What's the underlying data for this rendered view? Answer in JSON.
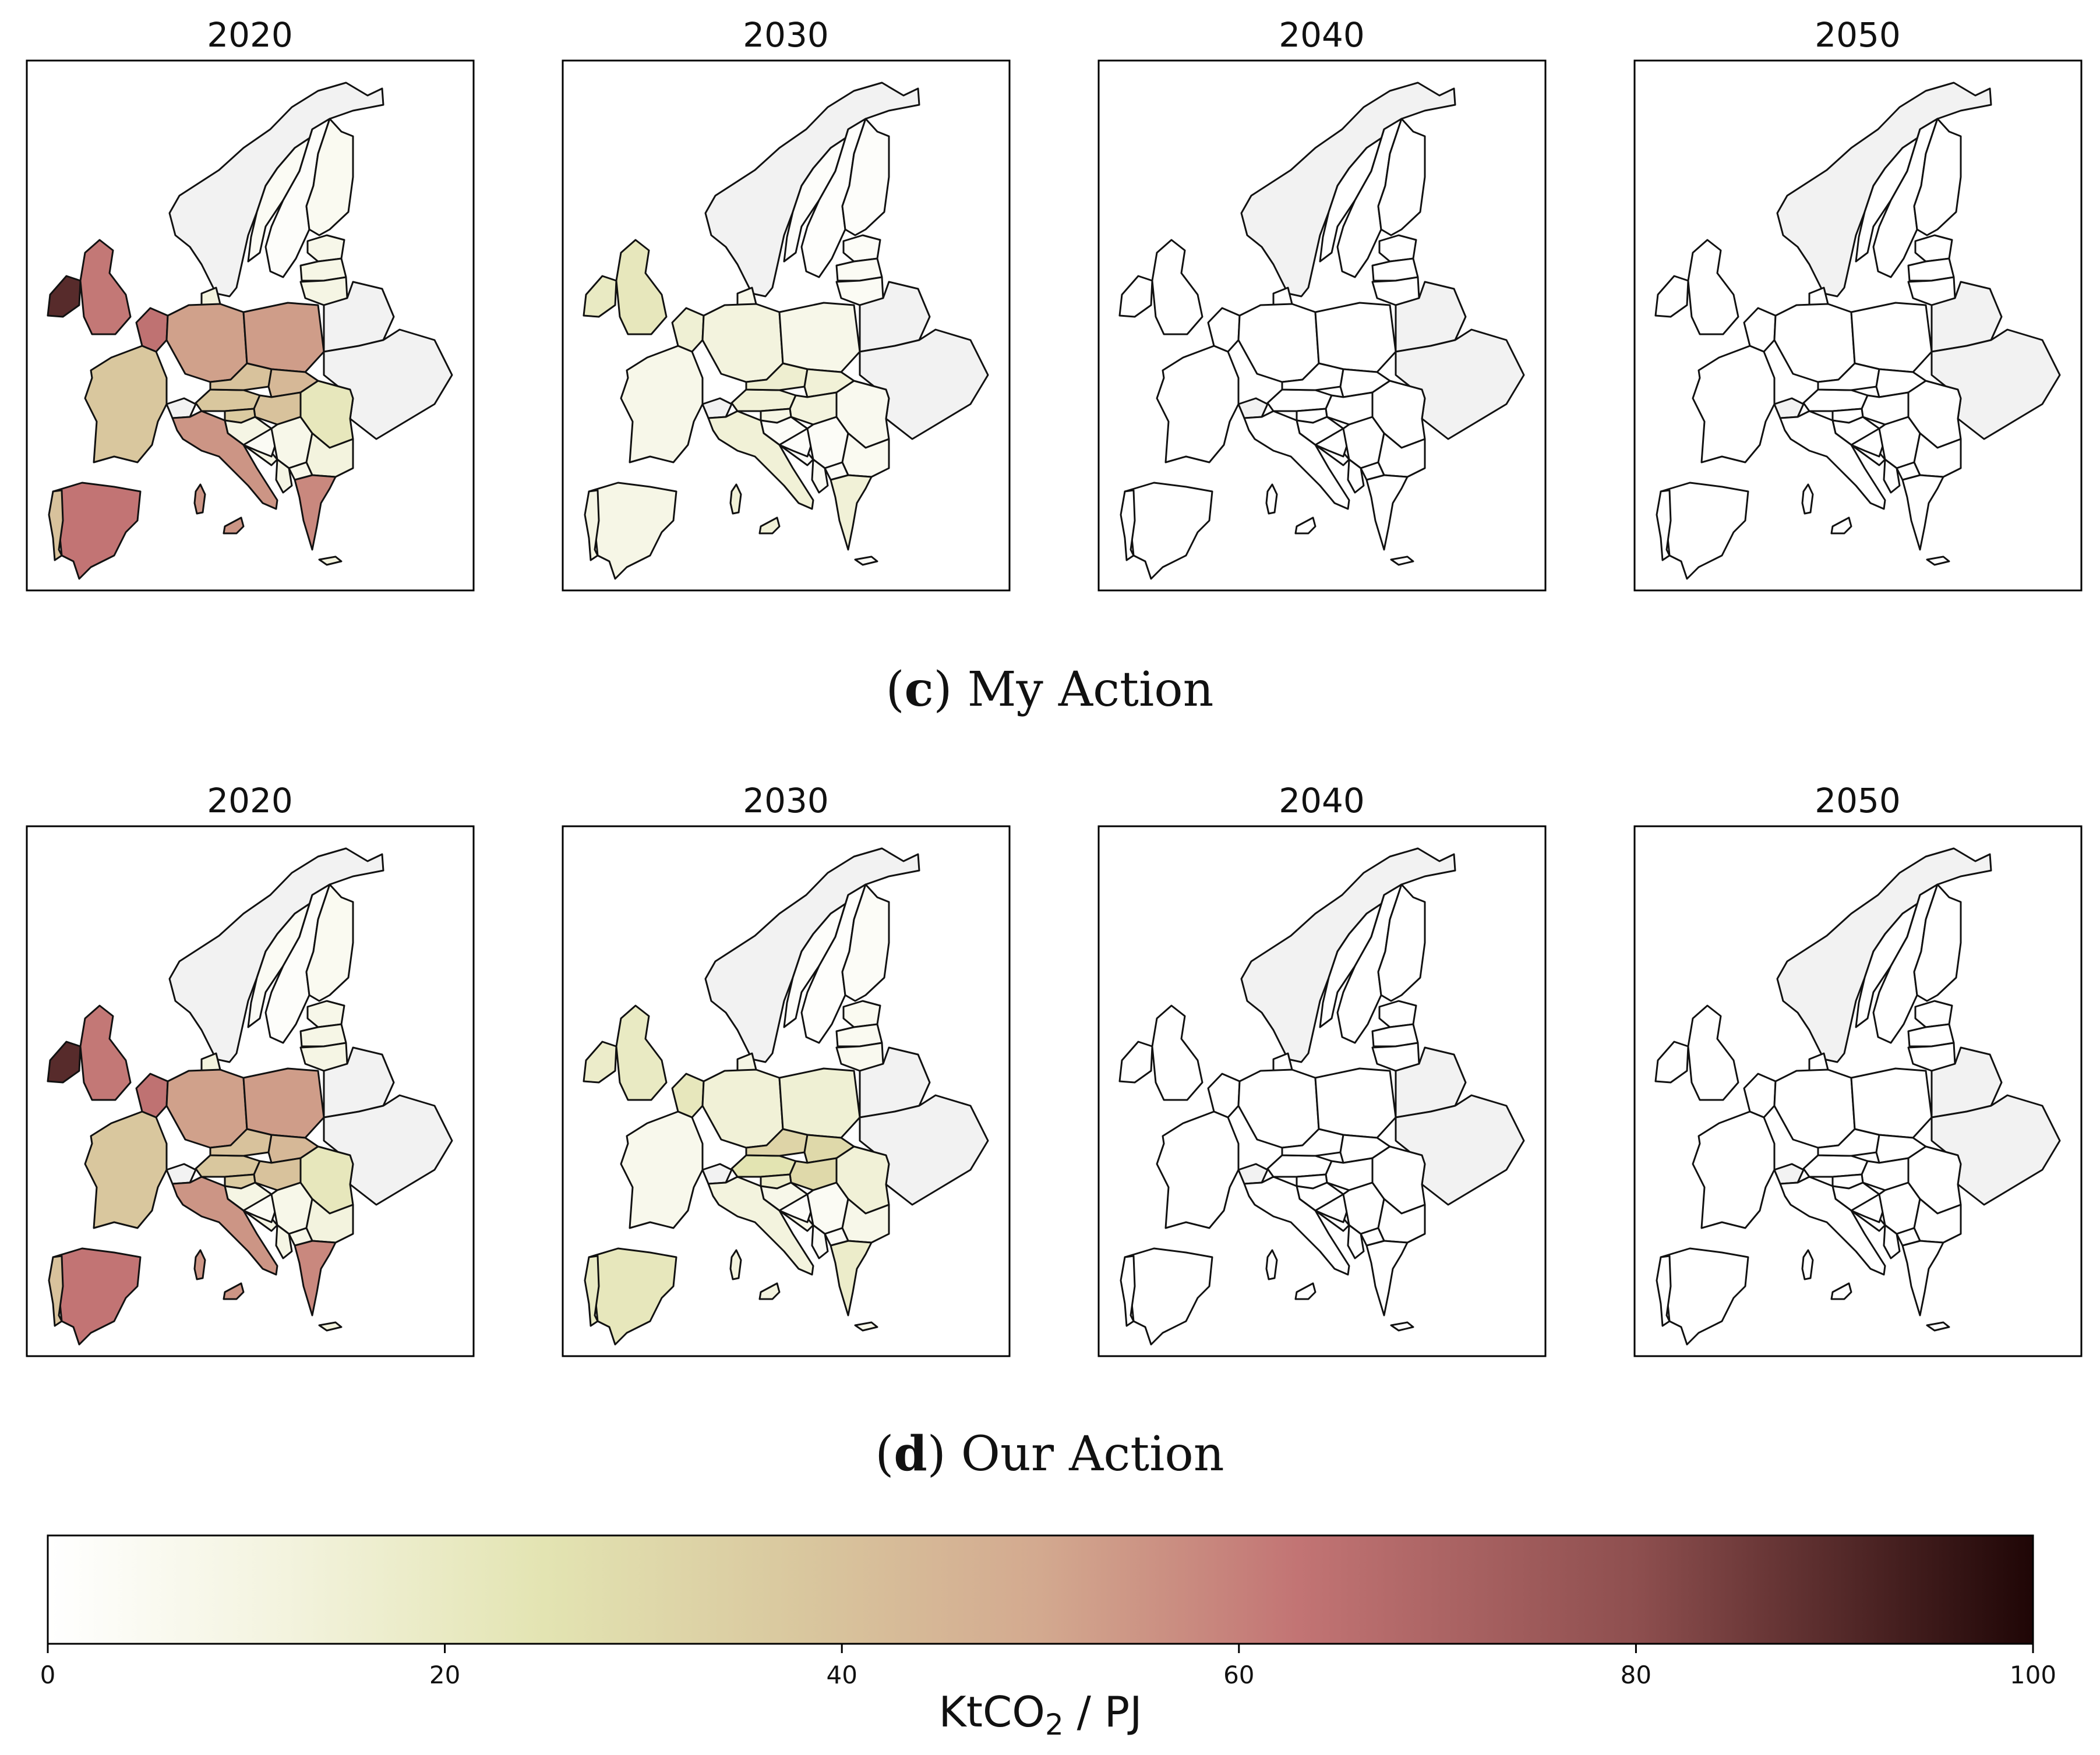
{
  "years": [
    "2020",
    "2030",
    "2040",
    "2050"
  ],
  "rows": [
    {
      "caption_letter": "c",
      "caption_text": "My Action",
      "maps": [
        {
          "year": "2020",
          "values": {
            "Iceland": 0,
            "Norway": 4,
            "Sweden": 2,
            "Finland": 5,
            "Estonia": 8,
            "Latvia": 9,
            "Lithuania": 10,
            "Denmark": 12,
            "Ireland": 90,
            "UK": 62,
            "Benelux": 64,
            "Germany": 52,
            "Poland": 53,
            "Belarus": 0,
            "Ukraine": 0,
            "France": 38,
            "Switzerland": 0,
            "Austria": 38,
            "Czechia": 40,
            "Slovakia": 44,
            "Hungary": 40,
            "Slovenia": 36,
            "Croatia": 10,
            "Bosnia": 4,
            "Serbia": 8,
            "Romania": 22,
            "Bulgaria": 12,
            "Italy": 55,
            "Greece": 58,
            "Albania": 10,
            "Macedonia": 8,
            "Spain": 63,
            "Portugal": 40,
            "Sardinia": 55,
            "Sicily": 55,
            "Crete": 12
          }
        },
        {
          "year": "2030",
          "values": {
            "Iceland": 0,
            "Norway": 2,
            "Sweden": 1,
            "Finland": 2,
            "Estonia": 3,
            "Latvia": 4,
            "Lithuania": 4,
            "Denmark": 8,
            "Ireland": 20,
            "UK": 22,
            "Benelux": 15,
            "Germany": 12,
            "Poland": 8,
            "Belarus": 0,
            "Ukraine": 0,
            "France": 8,
            "Switzerland": 0,
            "Austria": 14,
            "Czechia": 16,
            "Slovakia": 14,
            "Hungary": 12,
            "Slovenia": 10,
            "Croatia": 3,
            "Bosnia": 2,
            "Serbia": 3,
            "Romania": 6,
            "Bulgaria": 5,
            "Italy": 14,
            "Greece": 14,
            "Albania": 4,
            "Macedonia": 3,
            "Spain": 9,
            "Portugal": 10,
            "Sardinia": 14,
            "Sicily": 14,
            "Crete": 3
          }
        },
        {
          "year": "2040",
          "values": {
            "Iceland": 0,
            "Norway": 0,
            "Sweden": 0,
            "Finland": 0,
            "Estonia": 0,
            "Latvia": 0,
            "Lithuania": 0,
            "Denmark": 0,
            "Ireland": 0,
            "UK": 0,
            "Benelux": 0,
            "Germany": 0,
            "Poland": 0,
            "Belarus": 0,
            "Ukraine": 0,
            "France": 0,
            "Switzerland": 0,
            "Austria": 0,
            "Czechia": 0,
            "Slovakia": 0,
            "Hungary": 0,
            "Slovenia": 0,
            "Croatia": 0,
            "Bosnia": 0,
            "Serbia": 0,
            "Romania": 0,
            "Bulgaria": 0,
            "Italy": 0,
            "Greece": 0,
            "Albania": 0,
            "Macedonia": 0,
            "Spain": 0,
            "Portugal": 0,
            "Sardinia": 0,
            "Sicily": 0,
            "Crete": 0
          }
        },
        {
          "year": "2050",
          "values": {
            "Iceland": 0,
            "Norway": 0,
            "Sweden": 0,
            "Finland": 0,
            "Estonia": 0,
            "Latvia": 0,
            "Lithuania": 0,
            "Denmark": 0,
            "Ireland": 0,
            "UK": 0,
            "Benelux": 0,
            "Germany": 0,
            "Poland": 0,
            "Belarus": 0,
            "Ukraine": 0,
            "France": 0,
            "Switzerland": 0,
            "Austria": 0,
            "Czechia": 0,
            "Slovakia": 0,
            "Hungary": 0,
            "Slovenia": 0,
            "Croatia": 0,
            "Bosnia": 0,
            "Serbia": 0,
            "Romania": 0,
            "Bulgaria": 0,
            "Italy": 0,
            "Greece": 0,
            "Albania": 0,
            "Macedonia": 0,
            "Spain": 0,
            "Portugal": 0,
            "Sardinia": 0,
            "Sicily": 0,
            "Crete": 0
          }
        }
      ]
    },
    {
      "caption_letter": "d",
      "caption_text": "Our Action",
      "maps": [
        {
          "year": "2020",
          "values": {
            "Iceland": 0,
            "Norway": 4,
            "Sweden": 2,
            "Finland": 5,
            "Estonia": 8,
            "Latvia": 9,
            "Lithuania": 10,
            "Denmark": 12,
            "Ireland": 90,
            "UK": 62,
            "Benelux": 64,
            "Germany": 52,
            "Poland": 53,
            "Belarus": 0,
            "Ukraine": 0,
            "France": 38,
            "Switzerland": 0,
            "Austria": 38,
            "Czechia": 40,
            "Slovakia": 44,
            "Hungary": 40,
            "Slovenia": 36,
            "Croatia": 10,
            "Bosnia": 4,
            "Serbia": 8,
            "Romania": 22,
            "Bulgaria": 12,
            "Italy": 55,
            "Greece": 58,
            "Albania": 10,
            "Macedonia": 8,
            "Spain": 63,
            "Portugal": 40,
            "Sardinia": 55,
            "Sicily": 55,
            "Crete": 12
          }
        },
        {
          "year": "2030",
          "values": {
            "Iceland": 0,
            "Norway": 2,
            "Sweden": 1,
            "Finland": 3,
            "Estonia": 5,
            "Latvia": 5,
            "Lithuania": 6,
            "Denmark": 10,
            "Ireland": 18,
            "UK": 20,
            "Benelux": 22,
            "Germany": 14,
            "Poland": 15,
            "Belarus": 0,
            "Ukraine": 0,
            "France": 7,
            "Switzerland": 0,
            "Austria": 25,
            "Czechia": 32,
            "Slovakia": 30,
            "Hungary": 30,
            "Slovenia": 18,
            "Croatia": 8,
            "Bosnia": 2,
            "Serbia": 4,
            "Romania": 14,
            "Bulgaria": 8,
            "Italy": 12,
            "Greece": 18,
            "Albania": 3,
            "Macedonia": 3,
            "Spain": 22,
            "Portugal": 20,
            "Sardinia": 12,
            "Sicily": 12,
            "Crete": 8
          }
        },
        {
          "year": "2040",
          "values": {
            "Iceland": 0,
            "Norway": 0,
            "Sweden": 0,
            "Finland": 0,
            "Estonia": 0,
            "Latvia": 0,
            "Lithuania": 0,
            "Denmark": 0,
            "Ireland": 0,
            "UK": 0,
            "Benelux": 0,
            "Germany": 0,
            "Poland": 0,
            "Belarus": 0,
            "Ukraine": 0,
            "France": 0,
            "Switzerland": 0,
            "Austria": 0,
            "Czechia": 0,
            "Slovakia": 0,
            "Hungary": 0,
            "Slovenia": 0,
            "Croatia": 0,
            "Bosnia": 0,
            "Serbia": 0,
            "Romania": 0,
            "Bulgaria": 0,
            "Italy": 0,
            "Greece": 0,
            "Albania": 0,
            "Macedonia": 0,
            "Spain": 0,
            "Portugal": 0,
            "Sardinia": 0,
            "Sicily": 0,
            "Crete": 0
          }
        },
        {
          "year": "2050",
          "values": {
            "Iceland": 0,
            "Norway": 0,
            "Sweden": 0,
            "Finland": 0,
            "Estonia": 0,
            "Latvia": 0,
            "Lithuania": 0,
            "Denmark": 0,
            "Ireland": 0,
            "UK": 0,
            "Benelux": 0,
            "Germany": 0,
            "Poland": 0,
            "Belarus": 0,
            "Ukraine": 0,
            "France": 0,
            "Switzerland": 0,
            "Austria": 0,
            "Czechia": 0,
            "Slovakia": 0,
            "Hungary": 0,
            "Slovenia": 0,
            "Croatia": 0,
            "Bosnia": 0,
            "Serbia": 0,
            "Romania": 0,
            "Bulgaria": 0,
            "Italy": 0,
            "Greece": 0,
            "Albania": 0,
            "Macedonia": 0,
            "Spain": 0,
            "Portugal": 0,
            "Sardinia": 0,
            "Sicily": 0,
            "Crete": 0
          }
        }
      ]
    }
  ],
  "colorbar": {
    "min": 0,
    "max": 100,
    "ticks": [
      "0",
      "20",
      "40",
      "60",
      "80",
      "100"
    ],
    "label_prefix": "KtCO",
    "label_subscript": "2",
    "label_suffix": " / PJ",
    "stops": [
      {
        "v": 0,
        "color": "#ffffff"
      },
      {
        "v": 12,
        "color": "#f3f3de"
      },
      {
        "v": 25,
        "color": "#e3e4b2"
      },
      {
        "v": 38,
        "color": "#d9c79e"
      },
      {
        "v": 50,
        "color": "#d3a98f"
      },
      {
        "v": 63,
        "color": "#c27474"
      },
      {
        "v": 80,
        "color": "#8e4f4f"
      },
      {
        "v": 100,
        "color": "#1f0606"
      }
    ],
    "missing_color": "#f2f2f2"
  },
  "no_data_regions": [
    "Iceland",
    "Belarus",
    "Ukraine",
    "Switzerland"
  ]
}
